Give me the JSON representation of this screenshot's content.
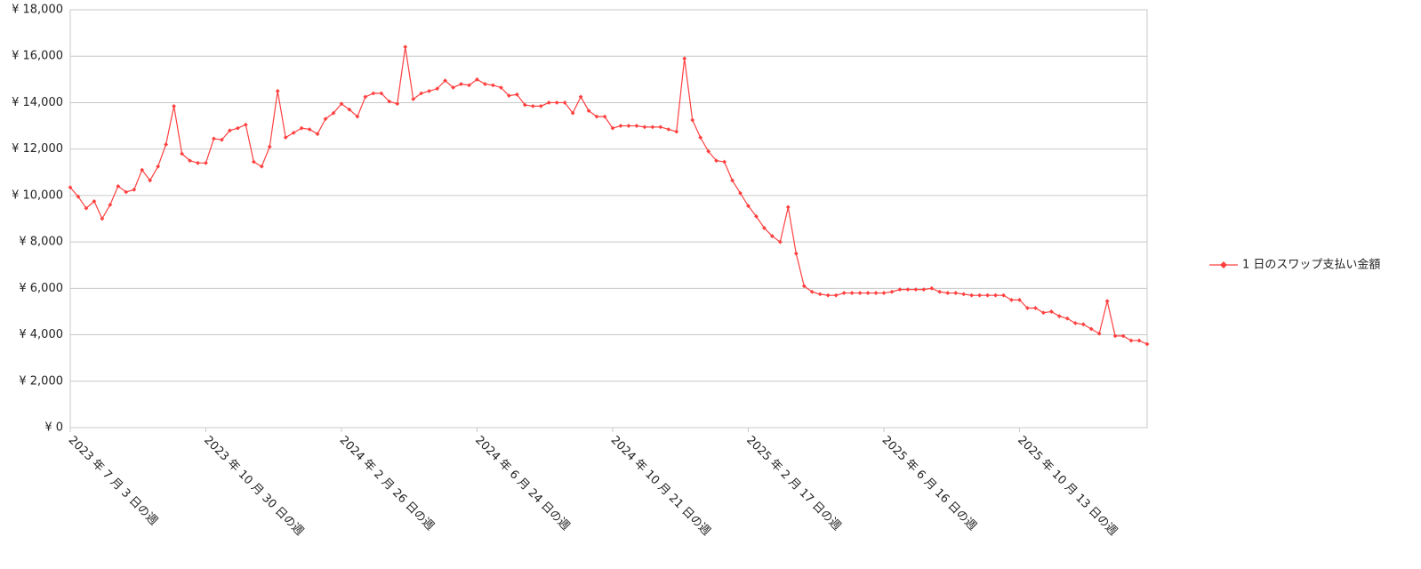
{
  "chart_data": {
    "type": "line",
    "categories": [
      "2023 年 7 月 3 日の週",
      null,
      null,
      null,
      null,
      null,
      null,
      null,
      null,
      null,
      null,
      null,
      null,
      null,
      null,
      null,
      null,
      "2023 年 10 月 30 日の週",
      null,
      null,
      null,
      null,
      null,
      null,
      null,
      null,
      null,
      null,
      null,
      null,
      null,
      null,
      null,
      null,
      "2024 年 2 月 26 日の週",
      null,
      null,
      null,
      null,
      null,
      null,
      null,
      null,
      null,
      null,
      null,
      null,
      null,
      null,
      null,
      null,
      "2024 年 6 月 24 日の週",
      null,
      null,
      null,
      null,
      null,
      null,
      null,
      null,
      null,
      null,
      null,
      null,
      null,
      null,
      null,
      null,
      "2024 年 10 月 21 日の週",
      null,
      null,
      null,
      null,
      null,
      null,
      null,
      null,
      null,
      null,
      null,
      null,
      null,
      null,
      null,
      null,
      "2025 年 2 月 17 日の週",
      null,
      null,
      null,
      null,
      null,
      null,
      null,
      null,
      null,
      null,
      null,
      null,
      null,
      null,
      null,
      null,
      "2025 年 6 月 16 日の週",
      null,
      null,
      null,
      null,
      null,
      null,
      null,
      null,
      null,
      null,
      null,
      null,
      null,
      null,
      null,
      null,
      "2025 年 10 月 13 日の週",
      null,
      null,
      null,
      null,
      null,
      null,
      null,
      null,
      null,
      null,
      null,
      null,
      null,
      null,
      null,
      null
    ],
    "series": [
      {
        "name": "1 日のスワップ支払い金額",
        "color": "#ff4040",
        "values": [
          10350,
          9950,
          9450,
          9750,
          9000,
          9600,
          10400,
          10150,
          10250,
          11100,
          10650,
          11250,
          12200,
          13850,
          11800,
          11500,
          11400,
          11400,
          12450,
          12400,
          12800,
          12900,
          13050,
          11450,
          11250,
          12100,
          14500,
          12500,
          12700,
          12900,
          12850,
          12650,
          13300,
          13550,
          13950,
          13700,
          13400,
          14250,
          14400,
          14400,
          14050,
          13950,
          16400,
          14150,
          14400,
          14500,
          14600,
          14950,
          14650,
          14800,
          14750,
          15000,
          14800,
          14750,
          14650,
          14300,
          14350,
          13900,
          13850,
          13850,
          14000,
          14000,
          14000,
          13550,
          14250,
          13650,
          13400,
          13400,
          12900,
          13000,
          13000,
          13000,
          12950,
          12950,
          12950,
          12850,
          12750,
          15900,
          13250,
          12500,
          11900,
          11500,
          11450,
          10650,
          10100,
          9550,
          9100,
          8600,
          8250,
          8000,
          9500,
          7500,
          6100,
          5850,
          5750,
          5700,
          5700,
          5800,
          5800,
          5800,
          5800,
          5800,
          5800,
          5850,
          5950,
          5950,
          5950,
          5950,
          6000,
          5850,
          5800,
          5800,
          5750,
          5700,
          5700,
          5700,
          5700,
          5700,
          5500,
          5500,
          5150,
          5150,
          4950,
          5000,
          4800,
          4700,
          4500,
          4450,
          4250,
          4050,
          5450,
          3950,
          3950,
          3750,
          3750,
          3600
        ]
      }
    ],
    "ylim": [
      0,
      18000
    ],
    "yticks": [
      {
        "value": 0,
        "label": "¥ 0"
      },
      {
        "value": 2000,
        "label": "¥ 2,000"
      },
      {
        "value": 4000,
        "label": "¥ 4,000"
      },
      {
        "value": 6000,
        "label": "¥ 6,000"
      },
      {
        "value": 8000,
        "label": "¥ 8,000"
      },
      {
        "value": 10000,
        "label": "¥ 10,000"
      },
      {
        "value": 12000,
        "label": "¥ 12,000"
      },
      {
        "value": 14000,
        "label": "¥ 14,000"
      },
      {
        "value": 16000,
        "label": "¥ 16,000"
      },
      {
        "value": 18000,
        "label": "¥ 18,000"
      }
    ],
    "grid": true,
    "legend": "right"
  }
}
